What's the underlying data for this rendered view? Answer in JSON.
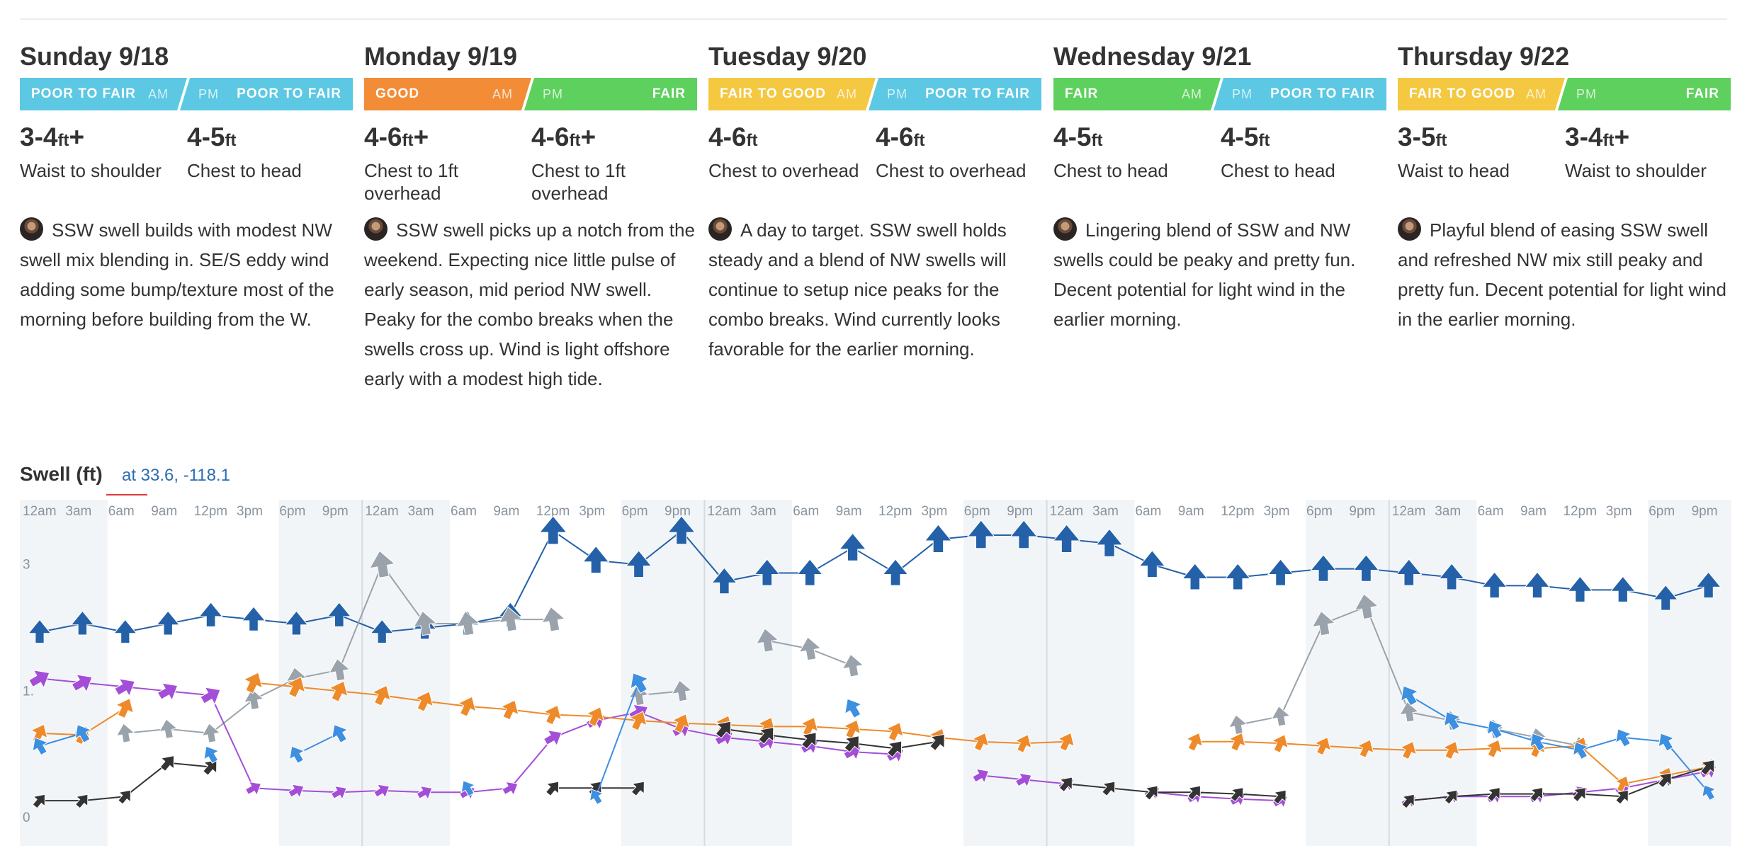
{
  "days": [
    {
      "title": "Sunday 9/18",
      "am": {
        "rating": "POOR TO FAIR",
        "tag": "AM",
        "color": "#5cc8e3",
        "height": "3-4",
        "unit": "ft",
        "plus": "+",
        "desc": "Waist to shoulder"
      },
      "pm": {
        "rating": "POOR TO FAIR",
        "tag": "PM",
        "color": "#5cc8e3",
        "height": "4-5",
        "unit": "ft",
        "plus": "",
        "desc": "Chest to head"
      },
      "summary": "SSW swell builds with modest NW swell mix blending in. SE/S eddy wind adding some bump/texture most of the morning before building from the W."
    },
    {
      "title": "Monday 9/19",
      "am": {
        "rating": "GOOD",
        "tag": "AM",
        "color": "#f28c36",
        "height": "4-6",
        "unit": "ft",
        "plus": "+",
        "desc": "Chest to 1ft overhead"
      },
      "pm": {
        "rating": "FAIR",
        "tag": "PM",
        "color": "#5ed05e",
        "height": "4-6",
        "unit": "ft",
        "plus": "+",
        "desc": "Chest to 1ft overhead"
      },
      "summary": "SSW swell picks up a notch from the weekend. Expecting nice little pulse of early season, mid period NW swell. Peaky for the combo breaks when the swells cross up. Wind is light offshore early with a modest high tide."
    },
    {
      "title": "Tuesday 9/20",
      "am": {
        "rating": "FAIR TO GOOD",
        "tag": "AM",
        "color": "#f5c842",
        "height": "4-6",
        "unit": "ft",
        "plus": "",
        "desc": "Chest to overhead"
      },
      "pm": {
        "rating": "POOR TO FAIR",
        "tag": "PM",
        "color": "#5cc8e3",
        "height": "4-6",
        "unit": "ft",
        "plus": "",
        "desc": "Chest to overhead"
      },
      "summary": "A day to target. SSW swell holds steady and a blend of NW swells will continue to setup nice peaks for the combo breaks. Wind currently looks favorable for the earlier morning."
    },
    {
      "title": "Wednesday 9/21",
      "am": {
        "rating": "FAIR",
        "tag": "AM",
        "color": "#5ed05e",
        "height": "4-5",
        "unit": "ft",
        "plus": "",
        "desc": "Chest to head"
      },
      "pm": {
        "rating": "POOR TO FAIR",
        "tag": "PM",
        "color": "#5cc8e3",
        "height": "4-5",
        "unit": "ft",
        "plus": "",
        "desc": "Chest to head"
      },
      "summary": "Lingering blend of SSW and NW swells could be peaky and pretty fun. Decent potential for light wind in the earlier morning."
    },
    {
      "title": "Thursday 9/22",
      "am": {
        "rating": "FAIR TO GOOD",
        "tag": "AM",
        "color": "#f5c842",
        "height": "3-5",
        "unit": "ft",
        "plus": "",
        "desc": "Waist to head"
      },
      "pm": {
        "rating": "FAIR",
        "tag": "PM",
        "color": "#5ed05e",
        "height": "3-4",
        "unit": "ft",
        "plus": "+",
        "desc": "Waist to shoulder"
      },
      "summary": "Playful blend of easing SSW swell and refreshed NW mix still peaky and pretty fun. Decent potential for light wind in the earlier morning."
    }
  ],
  "chart": {
    "title": "Swell (ft)",
    "location": "at 33.6, -118.1"
  },
  "chart_data": {
    "type": "line",
    "title": "Swell (ft)",
    "xlabel": "",
    "ylabel": "",
    "x_tick_labels": [
      "12am",
      "3am",
      "6am",
      "9am",
      "12pm",
      "3pm",
      "6pm",
      "9pm"
    ],
    "y_ticks": [
      0,
      1.5,
      3
    ],
    "y_tick_labels": [
      "0",
      "1.",
      "3"
    ],
    "ylim": [
      0,
      3.4
    ],
    "points_per_day": 8,
    "days": 5,
    "grid": true,
    "series": [
      {
        "color": "#2461a8",
        "values": [
          2.2,
          2.3,
          2.2,
          2.3,
          2.4,
          2.35,
          2.3,
          2.4,
          2.2,
          2.25,
          2.3,
          2.4,
          3.4,
          3.05,
          3.0,
          3.4,
          2.8,
          2.9,
          2.9,
          3.2,
          2.9,
          3.3,
          3.35,
          3.35,
          3.3,
          3.25,
          3.0,
          2.85,
          2.85,
          2.9,
          2.95,
          2.95,
          2.9,
          2.85,
          2.75,
          2.75,
          2.7,
          2.7,
          2.6,
          2.75
        ]
      },
      {
        "color": "#9aa3ab",
        "values": [
          null,
          null,
          1.0,
          1.05,
          1.0,
          1.4,
          1.65,
          1.75,
          3.0,
          2.3,
          2.3,
          2.35,
          2.35,
          null,
          1.45,
          1.5,
          null,
          2.1,
          2.0,
          1.8,
          null,
          null,
          null,
          null,
          null,
          null,
          null,
          null,
          1.1,
          1.2,
          2.3,
          2.5,
          1.25,
          1.15,
          1.05,
          0.95,
          0.85,
          null,
          null,
          null
        ]
      },
      {
        "color": "#a44ed8",
        "values": [
          1.65,
          1.6,
          1.55,
          1.5,
          1.45,
          0.35,
          0.32,
          0.3,
          0.32,
          0.3,
          0.3,
          0.35,
          0.95,
          1.15,
          1.25,
          1.05,
          0.95,
          0.9,
          0.85,
          0.78,
          0.75,
          null,
          0.5,
          0.45,
          0.4,
          null,
          0.3,
          0.25,
          0.22,
          0.2,
          null,
          null,
          0.2,
          0.25,
          0.25,
          0.25,
          0.3,
          0.35,
          0.45,
          0.55
        ]
      },
      {
        "color": "#ee8a2a",
        "values": [
          1.0,
          0.98,
          1.3,
          null,
          null,
          1.6,
          1.55,
          1.5,
          1.45,
          1.38,
          1.32,
          1.28,
          1.22,
          1.2,
          1.15,
          1.12,
          1.1,
          1.08,
          1.08,
          1.05,
          1.02,
          0.95,
          0.9,
          0.88,
          0.9,
          null,
          null,
          0.9,
          0.9,
          0.88,
          0.85,
          0.82,
          0.8,
          0.8,
          0.82,
          0.82,
          0.85,
          0.4,
          0.5,
          0.6
        ]
      },
      {
        "color": "#333333",
        "values": [
          0.2,
          0.2,
          0.25,
          0.65,
          0.6,
          null,
          null,
          null,
          null,
          null,
          null,
          null,
          0.35,
          0.35,
          0.35,
          null,
          1.05,
          0.98,
          0.92,
          0.88,
          0.82,
          0.9,
          null,
          null,
          0.4,
          0.35,
          0.3,
          0.3,
          0.28,
          0.25,
          null,
          null,
          0.2,
          0.25,
          0.28,
          0.28,
          0.28,
          0.25,
          0.45,
          0.6
        ]
      },
      {
        "color": "#3d8fe0",
        "values": [
          0.85,
          1.0,
          null,
          null,
          0.75,
          null,
          0.75,
          1.0,
          null,
          null,
          0.35,
          null,
          null,
          0.25,
          1.6,
          null,
          null,
          null,
          null,
          1.3,
          null,
          null,
          null,
          null,
          null,
          null,
          null,
          null,
          null,
          null,
          null,
          null,
          1.45,
          1.15,
          1.05,
          0.9,
          0.8,
          0.95,
          0.9,
          0.3
        ]
      }
    ]
  }
}
